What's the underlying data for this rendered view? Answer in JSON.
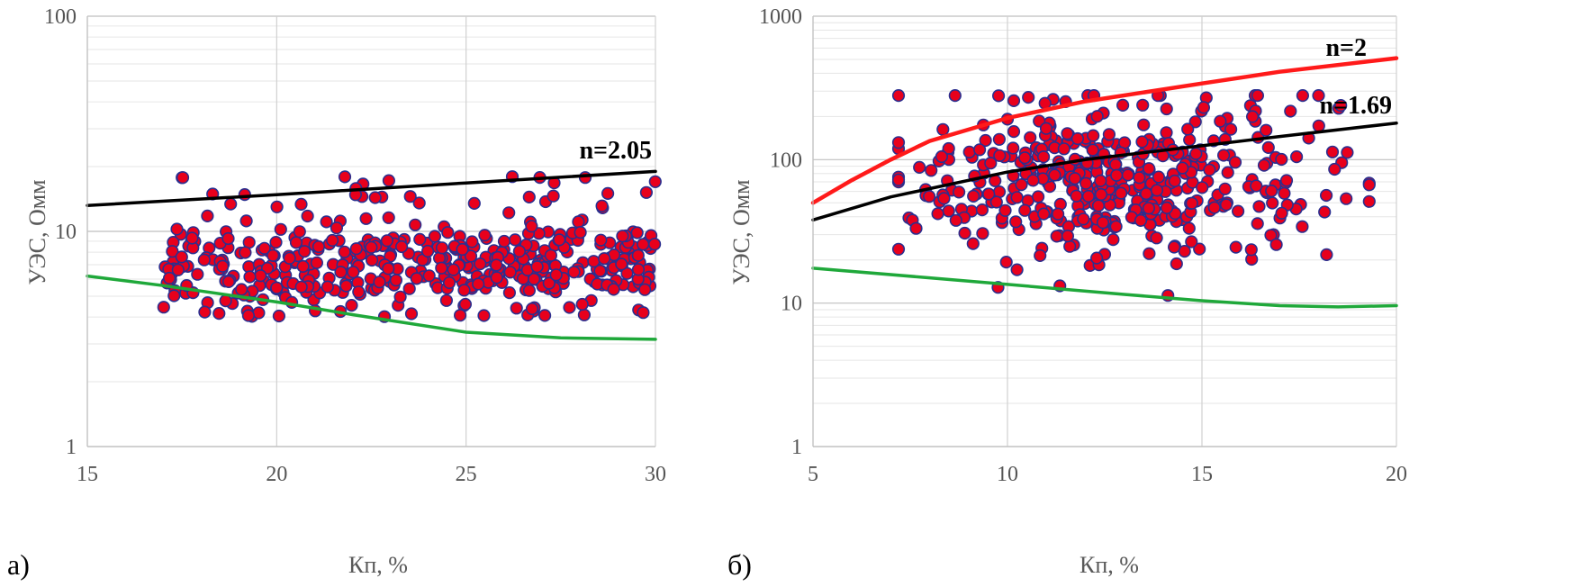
{
  "chart_data": [
    {
      "type": "scatter",
      "panel_label": "а)",
      "xlabel": "Кп, %",
      "ylabel": "УЭС, Омм",
      "xlim": [
        15,
        30
      ],
      "ylim": [
        1,
        100
      ],
      "y_scale": "log",
      "x_ticks": [
        "15",
        "20",
        "25",
        "30"
      ],
      "y_ticks": [
        "1",
        "10",
        "100"
      ],
      "grid": true,
      "marker_color": "#e8001c",
      "marker_edge_color": "#2b2f8f",
      "points": {
        "count": 450,
        "x_range": [
          17,
          30
        ],
        "y_range": [
          4,
          18
        ],
        "y_center_low": 5.2,
        "y_center_high": 9.5
      },
      "lines": [
        {
          "label": "n=2.05",
          "color": "#000000",
          "points": [
            [
              15,
              13.2
            ],
            [
              20,
              14.8
            ],
            [
              25,
              16.8
            ],
            [
              30,
              19
            ]
          ]
        },
        {
          "label": "",
          "color": "#1fa83a",
          "points": [
            [
              15,
              6.2
            ],
            [
              17,
              5.6
            ],
            [
              20,
              4.7
            ],
            [
              22,
              4.1
            ],
            [
              25,
              3.4
            ],
            [
              27.5,
              3.2
            ],
            [
              30,
              3.15
            ]
          ]
        }
      ]
    },
    {
      "type": "scatter",
      "panel_label": "б)",
      "xlabel": "Кп, %",
      "ylabel": "УЭС, Омм",
      "xlim": [
        5,
        20
      ],
      "ylim": [
        1,
        1000
      ],
      "y_scale": "log",
      "x_ticks": [
        "5",
        "10",
        "15",
        "20"
      ],
      "y_ticks": [
        "1",
        "10",
        "100",
        "1000"
      ],
      "grid": true,
      "marker_color": "#e8001c",
      "marker_edge_color": "#2b2f8f",
      "points": {
        "count": 450,
        "x_range": [
          7.2,
          19.3
        ],
        "y_range": [
          9,
          280
        ],
        "y_center": 70
      },
      "lines": [
        {
          "label": "n=2",
          "color": "#ff1a1a",
          "points": [
            [
              5,
              50
            ],
            [
              6,
              72
            ],
            [
              7,
              100
            ],
            [
              8,
              135
            ],
            [
              10,
              195
            ],
            [
              12,
              255
            ],
            [
              15,
              340
            ],
            [
              17,
              410
            ],
            [
              20,
              510
            ]
          ]
        },
        {
          "label": "n=1.69",
          "color": "#000000",
          "points": [
            [
              5,
              38
            ],
            [
              7,
              55
            ],
            [
              10,
              82
            ],
            [
              12,
              100
            ],
            [
              15,
              125
            ],
            [
              17,
              145
            ],
            [
              20,
              180
            ]
          ]
        },
        {
          "label": "",
          "color": "#1fa83a",
          "points": [
            [
              5,
              17.5
            ],
            [
              8,
              15
            ],
            [
              10,
              13.5
            ],
            [
              13,
              11.5
            ],
            [
              15,
              10.4
            ],
            [
              17,
              9.6
            ],
            [
              18.5,
              9.4
            ],
            [
              20,
              9.6
            ]
          ]
        }
      ]
    }
  ]
}
